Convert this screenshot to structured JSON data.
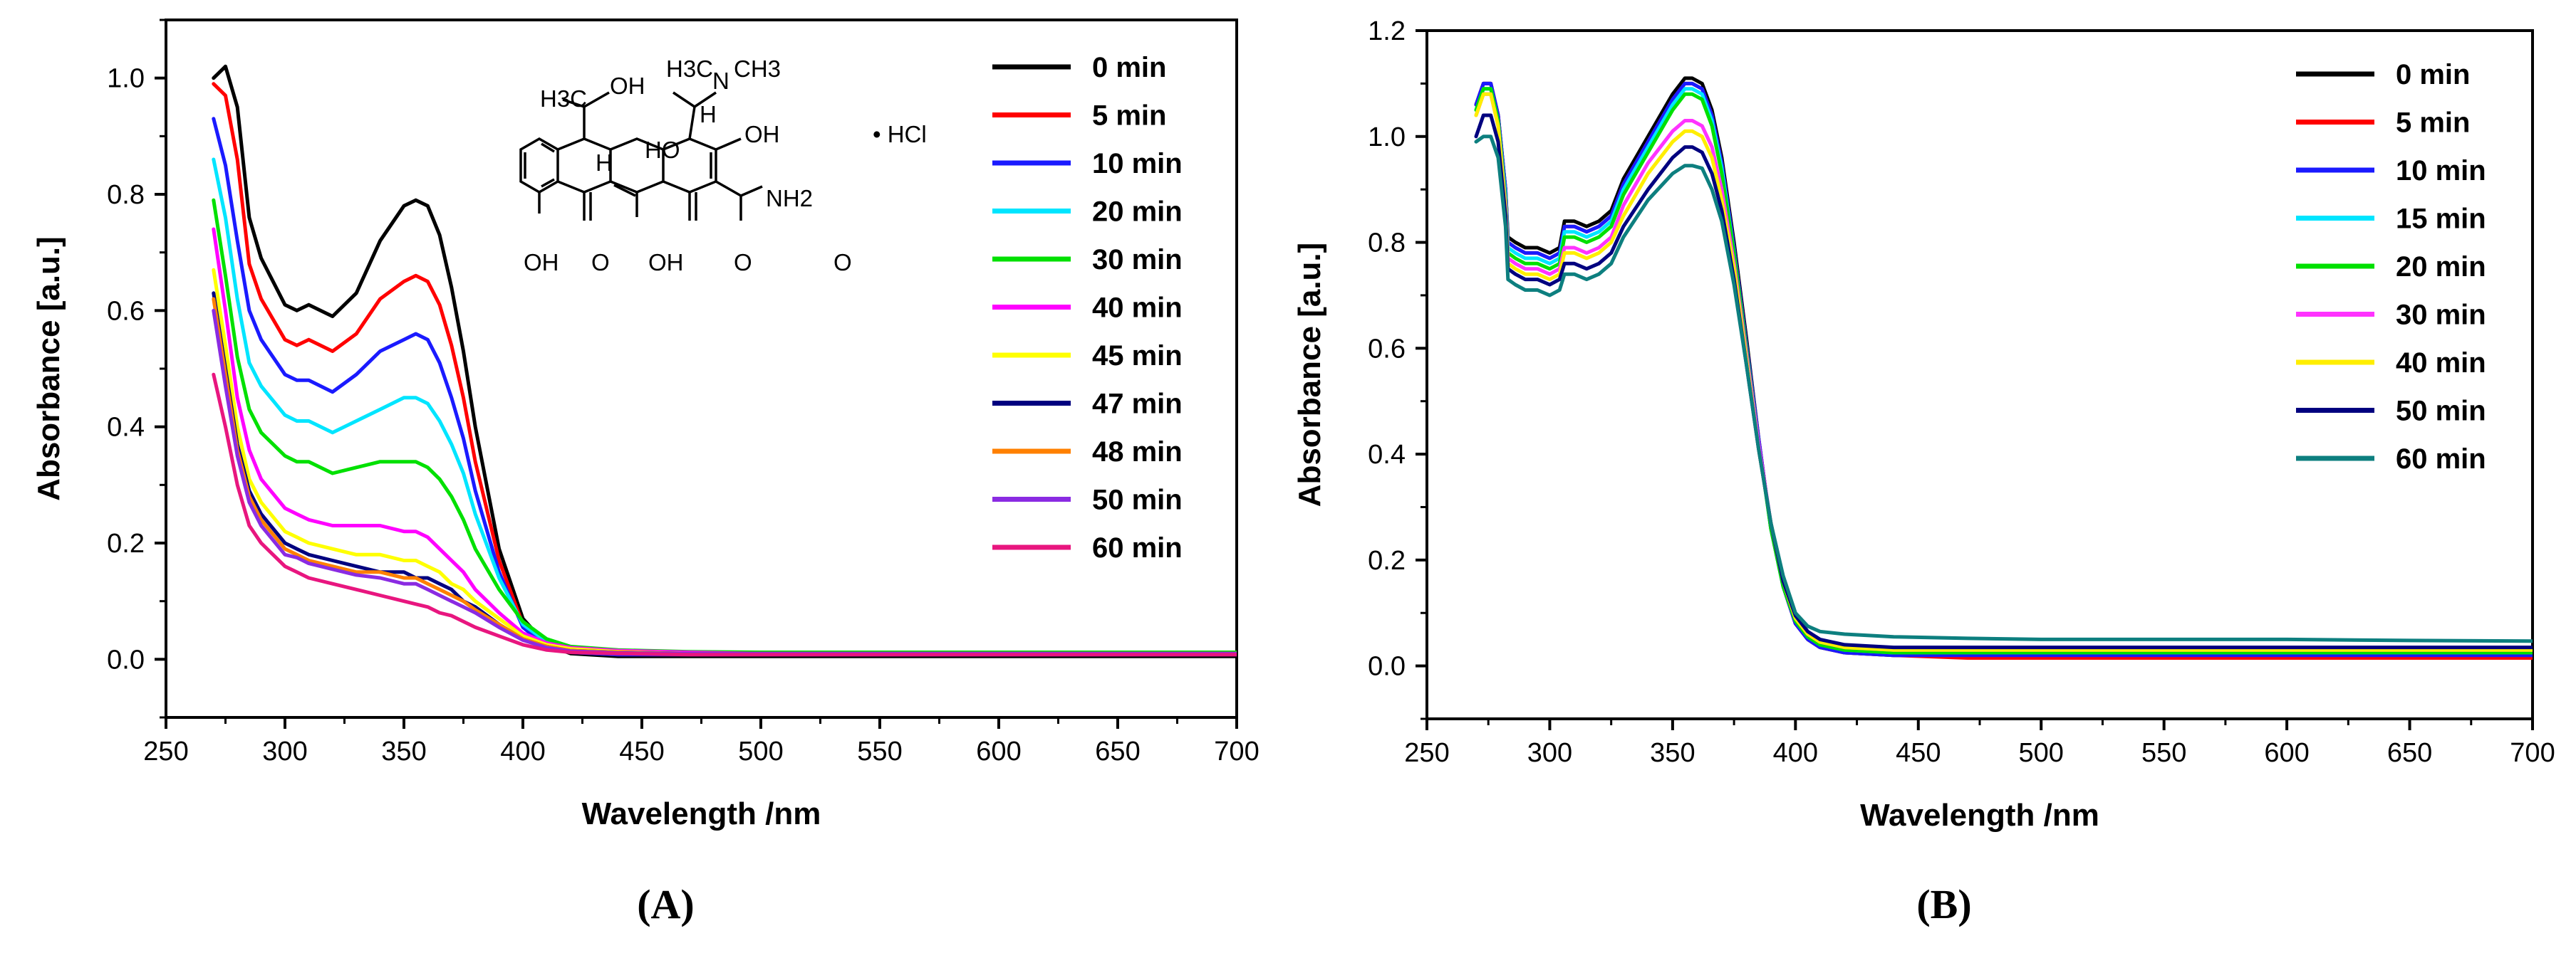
{
  "chart_data": [
    {
      "panel_label": "(A)",
      "type": "line",
      "xlabel": "Wavelength /nm",
      "ylabel": "Absorbance [a.u.]",
      "xlim": [
        250,
        700
      ],
      "ylim": [
        -0.1,
        1.1
      ],
      "xticks": [
        250,
        300,
        350,
        400,
        450,
        500,
        550,
        600,
        650,
        700
      ],
      "yticks": [
        0.0,
        0.2,
        0.4,
        0.6,
        0.8,
        1.0
      ],
      "ytick_labels": [
        "0.0",
        "0.2",
        "0.4",
        "0.6",
        "0.8",
        "1.0"
      ],
      "legend_position": "top-right",
      "grid": false,
      "inset": {
        "description": "tetracycline hydrochloride structure",
        "labels": [
          "H3C",
          "OH",
          "H3C",
          "CH3",
          "N",
          "H",
          "HO",
          "H",
          "OH",
          "• HCl",
          "NH2",
          "OH",
          "O",
          "OH",
          "O",
          "O"
        ]
      },
      "x": [
        270,
        275,
        280,
        285,
        290,
        300,
        305,
        310,
        320,
        330,
        340,
        350,
        355,
        360,
        365,
        370,
        375,
        380,
        390,
        400,
        410,
        420,
        440,
        470,
        500,
        550,
        600,
        650,
        700
      ],
      "series": [
        {
          "name": "0 min",
          "color": "#000000",
          "values": [
            1.0,
            1.02,
            0.95,
            0.76,
            0.69,
            0.61,
            0.6,
            0.61,
            0.59,
            0.63,
            0.72,
            0.78,
            0.79,
            0.78,
            0.73,
            0.64,
            0.53,
            0.4,
            0.19,
            0.07,
            0.025,
            0.01,
            0.005,
            0.005,
            0.005,
            0.005,
            0.005,
            0.005,
            0.005
          ]
        },
        {
          "name": "5 min",
          "color": "#ff0000",
          "values": [
            0.99,
            0.97,
            0.86,
            0.68,
            0.62,
            0.55,
            0.54,
            0.55,
            0.53,
            0.56,
            0.62,
            0.65,
            0.66,
            0.65,
            0.61,
            0.54,
            0.45,
            0.34,
            0.17,
            0.06,
            0.025,
            0.012,
            0.008,
            0.008,
            0.008,
            0.008,
            0.008,
            0.008,
            0.008
          ]
        },
        {
          "name": "10 min",
          "color": "#1a1aff",
          "values": [
            0.93,
            0.85,
            0.72,
            0.6,
            0.55,
            0.49,
            0.48,
            0.48,
            0.46,
            0.49,
            0.53,
            0.55,
            0.56,
            0.55,
            0.51,
            0.45,
            0.38,
            0.29,
            0.15,
            0.055,
            0.022,
            0.012,
            0.008,
            0.008,
            0.008,
            0.008,
            0.008,
            0.008,
            0.008
          ]
        },
        {
          "name": "20 min",
          "color": "#00e5ff",
          "values": [
            0.86,
            0.76,
            0.62,
            0.51,
            0.47,
            0.42,
            0.41,
            0.41,
            0.39,
            0.41,
            0.43,
            0.45,
            0.45,
            0.44,
            0.41,
            0.37,
            0.32,
            0.25,
            0.14,
            0.06,
            0.03,
            0.018,
            0.012,
            0.01,
            0.01,
            0.01,
            0.01,
            0.01,
            0.01
          ]
        },
        {
          "name": "30 min",
          "color": "#00e000",
          "values": [
            0.79,
            0.66,
            0.52,
            0.43,
            0.39,
            0.35,
            0.34,
            0.34,
            0.32,
            0.33,
            0.34,
            0.34,
            0.34,
            0.33,
            0.31,
            0.28,
            0.24,
            0.19,
            0.12,
            0.065,
            0.035,
            0.022,
            0.016,
            0.013,
            0.012,
            0.012,
            0.012,
            0.012,
            0.012
          ]
        },
        {
          "name": "40 min",
          "color": "#ff00ff",
          "values": [
            0.74,
            0.6,
            0.45,
            0.36,
            0.31,
            0.26,
            0.25,
            0.24,
            0.23,
            0.23,
            0.23,
            0.22,
            0.22,
            0.21,
            0.19,
            0.17,
            0.15,
            0.12,
            0.08,
            0.045,
            0.028,
            0.02,
            0.015,
            0.012,
            0.01,
            0.01,
            0.01,
            0.01,
            0.01
          ]
        },
        {
          "name": "45 min",
          "color": "#ffff00",
          "values": [
            0.67,
            0.54,
            0.4,
            0.31,
            0.27,
            0.22,
            0.21,
            0.2,
            0.19,
            0.18,
            0.18,
            0.17,
            0.17,
            0.16,
            0.15,
            0.13,
            0.12,
            0.1,
            0.07,
            0.04,
            0.025,
            0.018,
            0.013,
            0.01,
            0.01,
            0.01,
            0.01,
            0.01,
            0.01
          ]
        },
        {
          "name": "47 min",
          "color": "#00007f",
          "values": [
            0.63,
            0.5,
            0.37,
            0.29,
            0.25,
            0.2,
            0.19,
            0.18,
            0.17,
            0.16,
            0.15,
            0.15,
            0.14,
            0.14,
            0.13,
            0.12,
            0.1,
            0.09,
            0.06,
            0.035,
            0.022,
            0.015,
            0.012,
            0.01,
            0.01,
            0.01,
            0.01,
            0.01,
            0.01
          ]
        },
        {
          "name": "48 min",
          "color": "#ff8000",
          "values": [
            0.62,
            0.49,
            0.36,
            0.28,
            0.24,
            0.19,
            0.18,
            0.17,
            0.16,
            0.15,
            0.15,
            0.14,
            0.14,
            0.13,
            0.12,
            0.11,
            0.1,
            0.085,
            0.06,
            0.035,
            0.022,
            0.015,
            0.012,
            0.01,
            0.01,
            0.01,
            0.01,
            0.01,
            0.01
          ]
        },
        {
          "name": "50 min",
          "color": "#8a2be2",
          "values": [
            0.6,
            0.47,
            0.35,
            0.27,
            0.23,
            0.18,
            0.175,
            0.165,
            0.155,
            0.145,
            0.14,
            0.13,
            0.13,
            0.12,
            0.11,
            0.1,
            0.09,
            0.08,
            0.055,
            0.033,
            0.02,
            0.014,
            0.011,
            0.01,
            0.01,
            0.01,
            0.01,
            0.01,
            0.01
          ]
        },
        {
          "name": "60 min",
          "color": "#e8167f",
          "values": [
            0.49,
            0.4,
            0.3,
            0.23,
            0.2,
            0.16,
            0.15,
            0.14,
            0.13,
            0.12,
            0.11,
            0.1,
            0.095,
            0.09,
            0.08,
            0.075,
            0.065,
            0.055,
            0.04,
            0.025,
            0.016,
            0.012,
            0.01,
            0.008,
            0.008,
            0.008,
            0.008,
            0.008,
            0.008
          ]
        }
      ]
    },
    {
      "panel_label": "(B)",
      "type": "line",
      "xlabel": "Wavelength /nm",
      "ylabel": "Absorbance [a.u.]",
      "xlim": [
        250,
        700
      ],
      "ylim": [
        -0.1,
        1.2
      ],
      "xticks": [
        250,
        300,
        350,
        400,
        450,
        500,
        550,
        600,
        650,
        700
      ],
      "yticks": [
        0.0,
        0.2,
        0.4,
        0.6,
        0.8,
        1.0,
        1.2
      ],
      "ytick_labels": [
        "0.0",
        "0.2",
        "0.4",
        "0.6",
        "0.8",
        "1.0",
        "1.2"
      ],
      "legend_position": "top-right",
      "grid": false,
      "x": [
        270,
        273,
        276,
        279,
        282,
        283,
        286,
        290,
        295,
        300,
        304,
        306,
        310,
        315,
        320,
        325,
        330,
        340,
        350,
        355,
        358,
        362,
        366,
        370,
        375,
        380,
        385,
        390,
        395,
        400,
        405,
        410,
        420,
        440,
        470,
        500,
        550,
        600,
        650,
        700
      ],
      "series": [
        {
          "name": "0 min",
          "color": "#000000",
          "values": [
            1.06,
            1.1,
            1.1,
            1.04,
            0.9,
            0.81,
            0.8,
            0.79,
            0.79,
            0.78,
            0.79,
            0.84,
            0.84,
            0.83,
            0.84,
            0.86,
            0.92,
            1.0,
            1.08,
            1.11,
            1.11,
            1.1,
            1.05,
            0.96,
            0.8,
            0.62,
            0.43,
            0.26,
            0.15,
            0.08,
            0.05,
            0.035,
            0.025,
            0.02,
            0.02,
            0.02,
            0.02,
            0.02,
            0.02,
            0.02
          ]
        },
        {
          "name": "5 min",
          "color": "#ff0000",
          "values": [
            1.06,
            1.1,
            1.1,
            1.04,
            0.9,
            0.8,
            0.79,
            0.78,
            0.78,
            0.77,
            0.78,
            0.83,
            0.83,
            0.82,
            0.83,
            0.85,
            0.91,
            0.99,
            1.07,
            1.1,
            1.1,
            1.09,
            1.04,
            0.95,
            0.79,
            0.61,
            0.43,
            0.26,
            0.15,
            0.08,
            0.05,
            0.035,
            0.025,
            0.02,
            0.015,
            0.015,
            0.015,
            0.015,
            0.015,
            0.015
          ]
        },
        {
          "name": "10 min",
          "color": "#1a1aff",
          "values": [
            1.06,
            1.1,
            1.1,
            1.04,
            0.9,
            0.8,
            0.79,
            0.78,
            0.78,
            0.77,
            0.78,
            0.83,
            0.83,
            0.82,
            0.83,
            0.85,
            0.91,
            0.99,
            1.07,
            1.1,
            1.1,
            1.09,
            1.04,
            0.95,
            0.79,
            0.61,
            0.43,
            0.26,
            0.15,
            0.08,
            0.05,
            0.035,
            0.025,
            0.02,
            0.02,
            0.02,
            0.02,
            0.02,
            0.02,
            0.02
          ]
        },
        {
          "name": "15 min",
          "color": "#00e5ff",
          "values": [
            1.05,
            1.09,
            1.09,
            1.03,
            0.89,
            0.79,
            0.78,
            0.77,
            0.77,
            0.76,
            0.77,
            0.82,
            0.82,
            0.81,
            0.82,
            0.84,
            0.9,
            0.98,
            1.06,
            1.09,
            1.09,
            1.08,
            1.03,
            0.94,
            0.78,
            0.6,
            0.42,
            0.26,
            0.15,
            0.085,
            0.055,
            0.04,
            0.03,
            0.025,
            0.025,
            0.025,
            0.025,
            0.025,
            0.025,
            0.025
          ]
        },
        {
          "name": "20 min",
          "color": "#00e000",
          "values": [
            1.05,
            1.09,
            1.09,
            1.03,
            0.88,
            0.78,
            0.77,
            0.76,
            0.76,
            0.75,
            0.76,
            0.81,
            0.81,
            0.8,
            0.81,
            0.83,
            0.89,
            0.97,
            1.05,
            1.08,
            1.08,
            1.07,
            1.02,
            0.93,
            0.78,
            0.6,
            0.42,
            0.26,
            0.15,
            0.085,
            0.055,
            0.04,
            0.03,
            0.025,
            0.025,
            0.025,
            0.025,
            0.025,
            0.025,
            0.025
          ]
        },
        {
          "name": "30 min",
          "color": "#ff33ff",
          "values": [
            1.04,
            1.08,
            1.08,
            1.02,
            0.87,
            0.77,
            0.76,
            0.75,
            0.75,
            0.74,
            0.75,
            0.79,
            0.79,
            0.78,
            0.79,
            0.81,
            0.87,
            0.95,
            1.01,
            1.03,
            1.03,
            1.02,
            0.98,
            0.9,
            0.76,
            0.59,
            0.42,
            0.27,
            0.16,
            0.09,
            0.06,
            0.045,
            0.035,
            0.03,
            0.03,
            0.03,
            0.03,
            0.03,
            0.03,
            0.03
          ]
        },
        {
          "name": "40 min",
          "color": "#ffee00",
          "values": [
            1.04,
            1.08,
            1.08,
            1.02,
            0.86,
            0.76,
            0.75,
            0.74,
            0.74,
            0.73,
            0.74,
            0.78,
            0.78,
            0.77,
            0.78,
            0.8,
            0.85,
            0.93,
            0.99,
            1.01,
            1.01,
            1.0,
            0.96,
            0.88,
            0.75,
            0.58,
            0.41,
            0.27,
            0.16,
            0.09,
            0.06,
            0.045,
            0.035,
            0.03,
            0.03,
            0.03,
            0.03,
            0.03,
            0.03,
            0.03
          ]
        },
        {
          "name": "50 min",
          "color": "#00007f",
          "values": [
            1.0,
            1.04,
            1.04,
            0.99,
            0.85,
            0.75,
            0.74,
            0.73,
            0.73,
            0.72,
            0.73,
            0.76,
            0.76,
            0.75,
            0.76,
            0.78,
            0.83,
            0.9,
            0.96,
            0.98,
            0.98,
            0.97,
            0.93,
            0.86,
            0.73,
            0.57,
            0.41,
            0.27,
            0.16,
            0.095,
            0.065,
            0.05,
            0.04,
            0.035,
            0.035,
            0.035,
            0.035,
            0.035,
            0.035,
            0.035
          ]
        },
        {
          "name": "60 min",
          "color": "#0d7f7f",
          "values": [
            0.99,
            1.0,
            1.0,
            0.96,
            0.83,
            0.73,
            0.72,
            0.71,
            0.71,
            0.7,
            0.71,
            0.74,
            0.74,
            0.73,
            0.74,
            0.76,
            0.81,
            0.88,
            0.93,
            0.945,
            0.945,
            0.94,
            0.9,
            0.84,
            0.72,
            0.57,
            0.41,
            0.27,
            0.17,
            0.1,
            0.075,
            0.065,
            0.06,
            0.055,
            0.052,
            0.05,
            0.05,
            0.05,
            0.048,
            0.047
          ]
        }
      ]
    }
  ]
}
